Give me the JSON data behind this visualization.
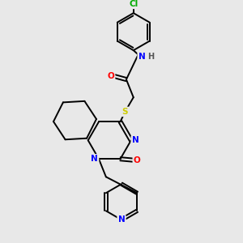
{
  "bg_color": "#e8e8e8",
  "bond_color": "#000000",
  "atom_colors": {
    "N": "#0000ff",
    "O": "#ff0000",
    "S": "#cccc00",
    "Cl": "#00aa00",
    "C": "#000000",
    "H": "#555555"
  },
  "bond_width": 1.4,
  "lw": 1.4
}
